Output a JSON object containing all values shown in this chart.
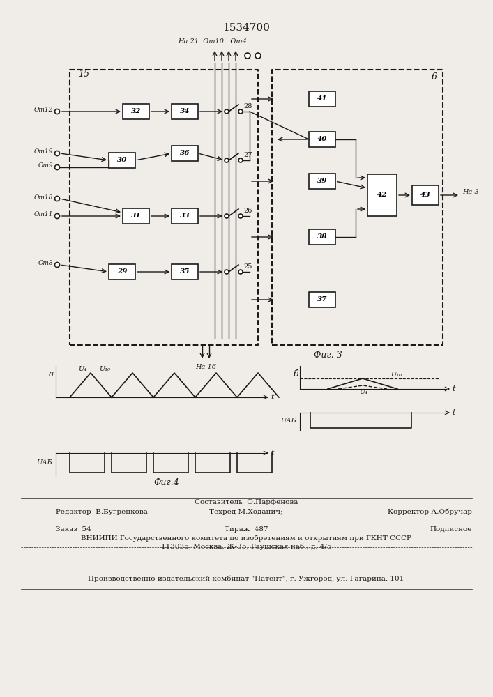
{
  "title": "1534700",
  "fig3_label": "Фиг. 3",
  "fig4_label": "Фиг.4",
  "bg_color": "#f0ede8",
  "line_color": "#1a1a1a"
}
